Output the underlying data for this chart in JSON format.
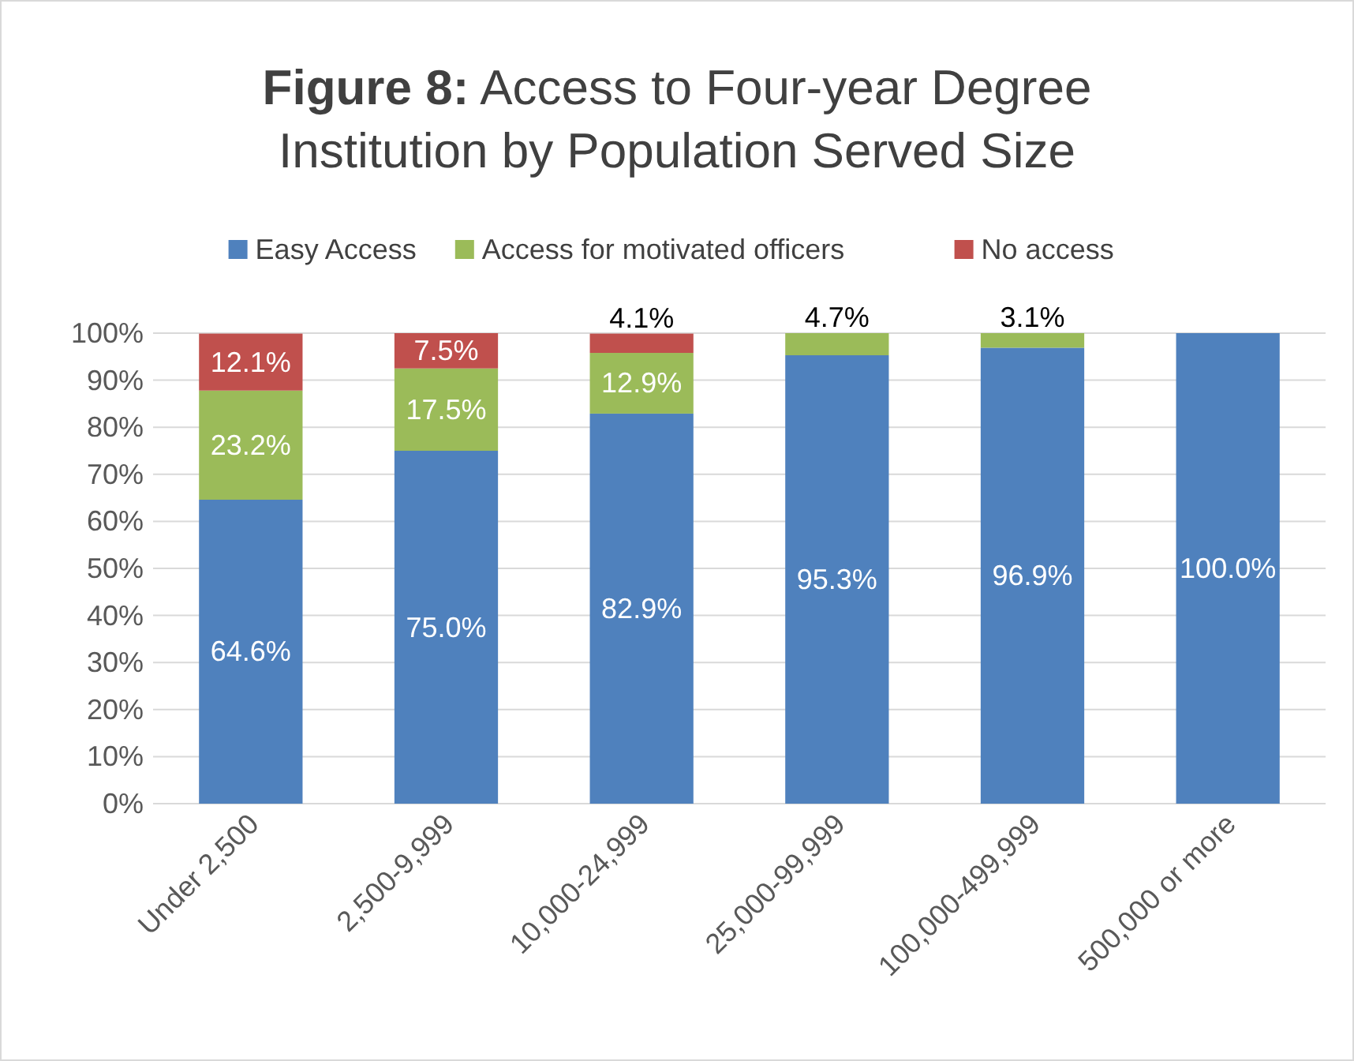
{
  "chart_data": {
    "type": "bar",
    "stacked": true,
    "title": "Figure 8: Access to Four-year Degree Institution by Population Served Size",
    "categories": [
      "Under 2,500",
      "2,500-9,999",
      "10,000-24,999",
      "25,000-99,999",
      "100,000-499,999",
      "500,000 or more"
    ],
    "series": [
      {
        "name": "Easy Access",
        "color": "#4f81bd",
        "values": [
          64.6,
          75.0,
          82.9,
          95.3,
          96.9,
          100.0
        ],
        "value_labels": [
          "64.6%",
          "75.0%",
          "82.9%",
          "95.3%",
          "96.9%",
          "100.0%"
        ]
      },
      {
        "name": "Access for motivated officers",
        "color": "#9bbb59",
        "values": [
          23.2,
          17.5,
          12.9,
          4.7,
          3.1,
          0
        ],
        "value_labels": [
          "23.2%",
          "17.5%",
          "12.9%",
          "4.7%",
          "3.1%",
          null
        ]
      },
      {
        "name": "No access",
        "color": "#c0504d",
        "values": [
          12.1,
          7.5,
          4.1,
          0,
          0,
          0
        ],
        "value_labels": [
          "12.1%",
          "7.5%",
          "4.1%",
          null,
          null,
          null
        ]
      }
    ],
    "ylim": [
      0,
      100
    ],
    "yticks": [
      {
        "value": 0,
        "label": "0%"
      },
      {
        "value": 10,
        "label": "10%"
      },
      {
        "value": 20,
        "label": "20%"
      },
      {
        "value": 30,
        "label": "30%"
      },
      {
        "value": 40,
        "label": "40%"
      },
      {
        "value": 50,
        "label": "50%"
      },
      {
        "value": 60,
        "label": "60%"
      },
      {
        "value": 70,
        "label": "70%"
      },
      {
        "value": 80,
        "label": "80%"
      },
      {
        "value": 90,
        "label": "90%"
      },
      {
        "value": 100,
        "label": "100%"
      }
    ],
    "grid": "y",
    "legend": "top"
  }
}
